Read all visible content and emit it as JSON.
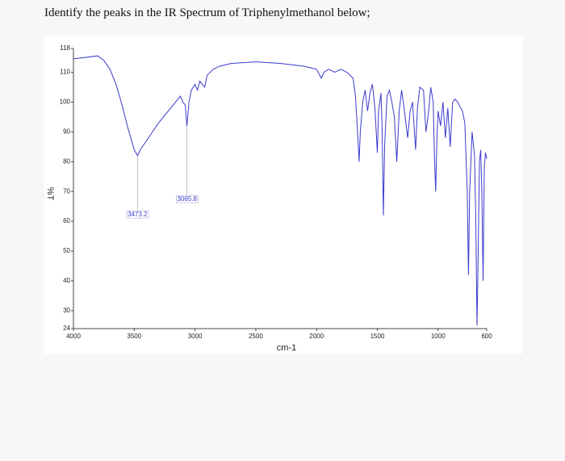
{
  "question": "Identify the peaks in the IR Spectrum of Triphenylmethanol below;",
  "chart_data": {
    "type": "line",
    "xlabel": "cm-1",
    "ylabel": "%T",
    "xlim": [
      4000,
      600
    ],
    "ylim": [
      24,
      118
    ],
    "xticks": [
      4000,
      3500,
      3000,
      2500,
      2000,
      1500,
      1000,
      600
    ],
    "yticks": [
      24,
      30,
      40,
      50,
      60,
      70,
      80,
      90,
      100,
      110,
      118
    ],
    "x": [
      4000,
      3900,
      3800,
      3750,
      3700,
      3650,
      3600,
      3550,
      3500,
      3473,
      3450,
      3400,
      3350,
      3300,
      3200,
      3120,
      3100,
      3080,
      3066,
      3050,
      3030,
      3000,
      2980,
      2960,
      2920,
      2900,
      2850,
      2800,
      2700,
      2500,
      2300,
      2100,
      2000,
      1960,
      1940,
      1900,
      1850,
      1800,
      1750,
      1700,
      1680,
      1660,
      1650,
      1640,
      1620,
      1600,
      1580,
      1560,
      1540,
      1520,
      1500,
      1490,
      1470,
      1460,
      1450,
      1440,
      1420,
      1400,
      1380,
      1360,
      1340,
      1320,
      1300,
      1280,
      1250,
      1230,
      1210,
      1185,
      1170,
      1150,
      1120,
      1100,
      1080,
      1060,
      1040,
      1030,
      1020,
      1010,
      1000,
      980,
      960,
      940,
      920,
      900,
      880,
      860,
      840,
      800,
      780,
      760,
      750,
      740,
      720,
      700,
      690,
      680,
      670,
      660,
      650,
      640,
      630,
      620,
      610,
      600
    ],
    "series": [
      {
        "name": "Triphenylmethanol",
        "color": "#3a3acc",
        "values": [
          114.5,
          115,
          115.5,
          114,
          111,
          106,
          99,
          91,
          84,
          82,
          84,
          87,
          90,
          93,
          98,
          102,
          100,
          99,
          92,
          100,
          104,
          106,
          104,
          107,
          105,
          109,
          111,
          112,
          113,
          113.5,
          113,
          112,
          111,
          108,
          110,
          111,
          110,
          111,
          110,
          108,
          102,
          88,
          80,
          90,
          100,
          104,
          97,
          103,
          106,
          98,
          83,
          97,
          103,
          90,
          62,
          85,
          102,
          104,
          100,
          95,
          80,
          97,
          104,
          98,
          88,
          97,
          100,
          84,
          98,
          105,
          104,
          90,
          96,
          105,
          100,
          82,
          70,
          88,
          97,
          92,
          100,
          88,
          98,
          85,
          100,
          101,
          100,
          97,
          93,
          70,
          42,
          70,
          90,
          82,
          62,
          25,
          50,
          80,
          84,
          70,
          40,
          78,
          83,
          81
        ]
      }
    ],
    "annotations": [
      {
        "text": "3473.2",
        "x": 3473.2,
        "y": 82
      },
      {
        "text": "3065.8",
        "x": 3065.8,
        "y": 92
      }
    ]
  }
}
